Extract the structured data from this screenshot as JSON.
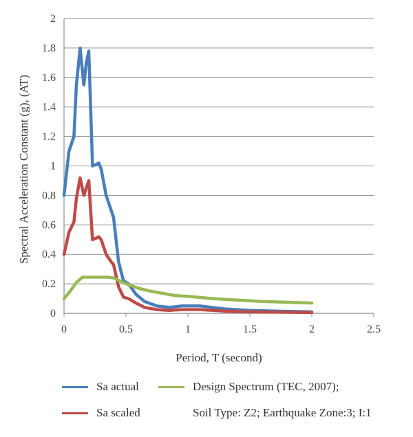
{
  "chart_data": {
    "type": "line",
    "xlabel": "Period, T (second)",
    "ylabel": "Spectral Acceleration Constant (g), (AT)",
    "xlim": [
      0,
      2.5
    ],
    "ylim": [
      0,
      2
    ],
    "x_ticks": [
      "0",
      "0.5",
      "1",
      "1.5",
      "2",
      "2.5"
    ],
    "y_ticks": [
      "0",
      "0.2",
      "0.4",
      "0.6",
      "0.8",
      "1",
      "1.2",
      "1.4",
      "1.6",
      "1.8",
      "2"
    ],
    "grid": "horizontal",
    "legend_position": "bottom",
    "legend_extra_text": "Soil Type: Z2; Earthquake Zone:3; I:1",
    "series": [
      {
        "name": "Sa actual",
        "color": "#4a7ebb",
        "x": [
          0,
          0.04,
          0.08,
          0.1,
          0.13,
          0.16,
          0.18,
          0.2,
          0.23,
          0.26,
          0.28,
          0.3,
          0.34,
          0.38,
          0.4,
          0.44,
          0.48,
          0.52,
          0.58,
          0.65,
          0.75,
          0.85,
          0.95,
          1.1,
          1.3,
          1.5,
          1.7,
          2.0
        ],
        "y": [
          0.8,
          1.1,
          1.2,
          1.55,
          1.8,
          1.55,
          1.7,
          1.78,
          1.0,
          1.01,
          1.02,
          0.98,
          0.8,
          0.7,
          0.65,
          0.35,
          0.22,
          0.2,
          0.13,
          0.08,
          0.05,
          0.04,
          0.05,
          0.05,
          0.03,
          0.02,
          0.015,
          0.01
        ]
      },
      {
        "name": "Sa scaled",
        "color": "#be4b48",
        "x": [
          0,
          0.04,
          0.08,
          0.1,
          0.13,
          0.16,
          0.18,
          0.2,
          0.23,
          0.26,
          0.28,
          0.3,
          0.34,
          0.38,
          0.4,
          0.44,
          0.48,
          0.52,
          0.58,
          0.65,
          0.75,
          0.85,
          0.95,
          1.1,
          1.3,
          1.5,
          1.7,
          2.0
        ],
        "y": [
          0.4,
          0.55,
          0.62,
          0.78,
          0.92,
          0.8,
          0.85,
          0.9,
          0.5,
          0.51,
          0.52,
          0.5,
          0.4,
          0.35,
          0.33,
          0.18,
          0.11,
          0.1,
          0.07,
          0.04,
          0.025,
          0.02,
          0.025,
          0.025,
          0.015,
          0.01,
          0.008,
          0.005
        ]
      },
      {
        "name": "Design Spectrum (TEC, 2007);",
        "color": "#98b954",
        "x": [
          0,
          0.05,
          0.1,
          0.15,
          0.3,
          0.35,
          0.4,
          0.5,
          0.6,
          0.7,
          0.8,
          0.9,
          1.0,
          1.2,
          1.4,
          1.6,
          1.8,
          2.0
        ],
        "y": [
          0.1,
          0.15,
          0.21,
          0.245,
          0.245,
          0.245,
          0.24,
          0.2,
          0.17,
          0.15,
          0.135,
          0.12,
          0.115,
          0.1,
          0.09,
          0.08,
          0.075,
          0.07
        ]
      }
    ]
  }
}
